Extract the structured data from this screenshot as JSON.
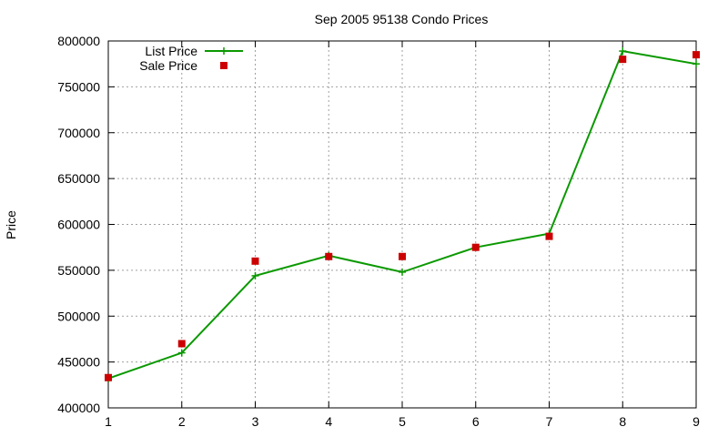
{
  "chart_data": {
    "type": "line",
    "title": "Sep 2005 95138 Condo Prices",
    "xlabel": "",
    "ylabel": "Price",
    "xlim": [
      1,
      9
    ],
    "ylim": [
      400000,
      800000
    ],
    "xticks": [
      1,
      2,
      3,
      4,
      5,
      6,
      7,
      8,
      9
    ],
    "yticks": [
      400000,
      450000,
      500000,
      550000,
      600000,
      650000,
      700000,
      750000,
      800000
    ],
    "grid": true,
    "legend_position": "top-left",
    "series": [
      {
        "name": "List Price",
        "style": "line+cross",
        "color": "#0a9900",
        "x": [
          1,
          2,
          3,
          4,
          5,
          6,
          7,
          8,
          9
        ],
        "values": [
          432000,
          460000,
          544000,
          566000,
          548000,
          575000,
          590000,
          789000,
          775000
        ]
      },
      {
        "name": "Sale Price",
        "style": "square",
        "color": "#cc0000",
        "x": [
          1,
          2,
          3,
          4,
          5,
          6,
          7,
          8,
          9
        ],
        "values": [
          433000,
          470000,
          560000,
          565000,
          565000,
          575000,
          587000,
          780000,
          785000
        ]
      }
    ]
  }
}
